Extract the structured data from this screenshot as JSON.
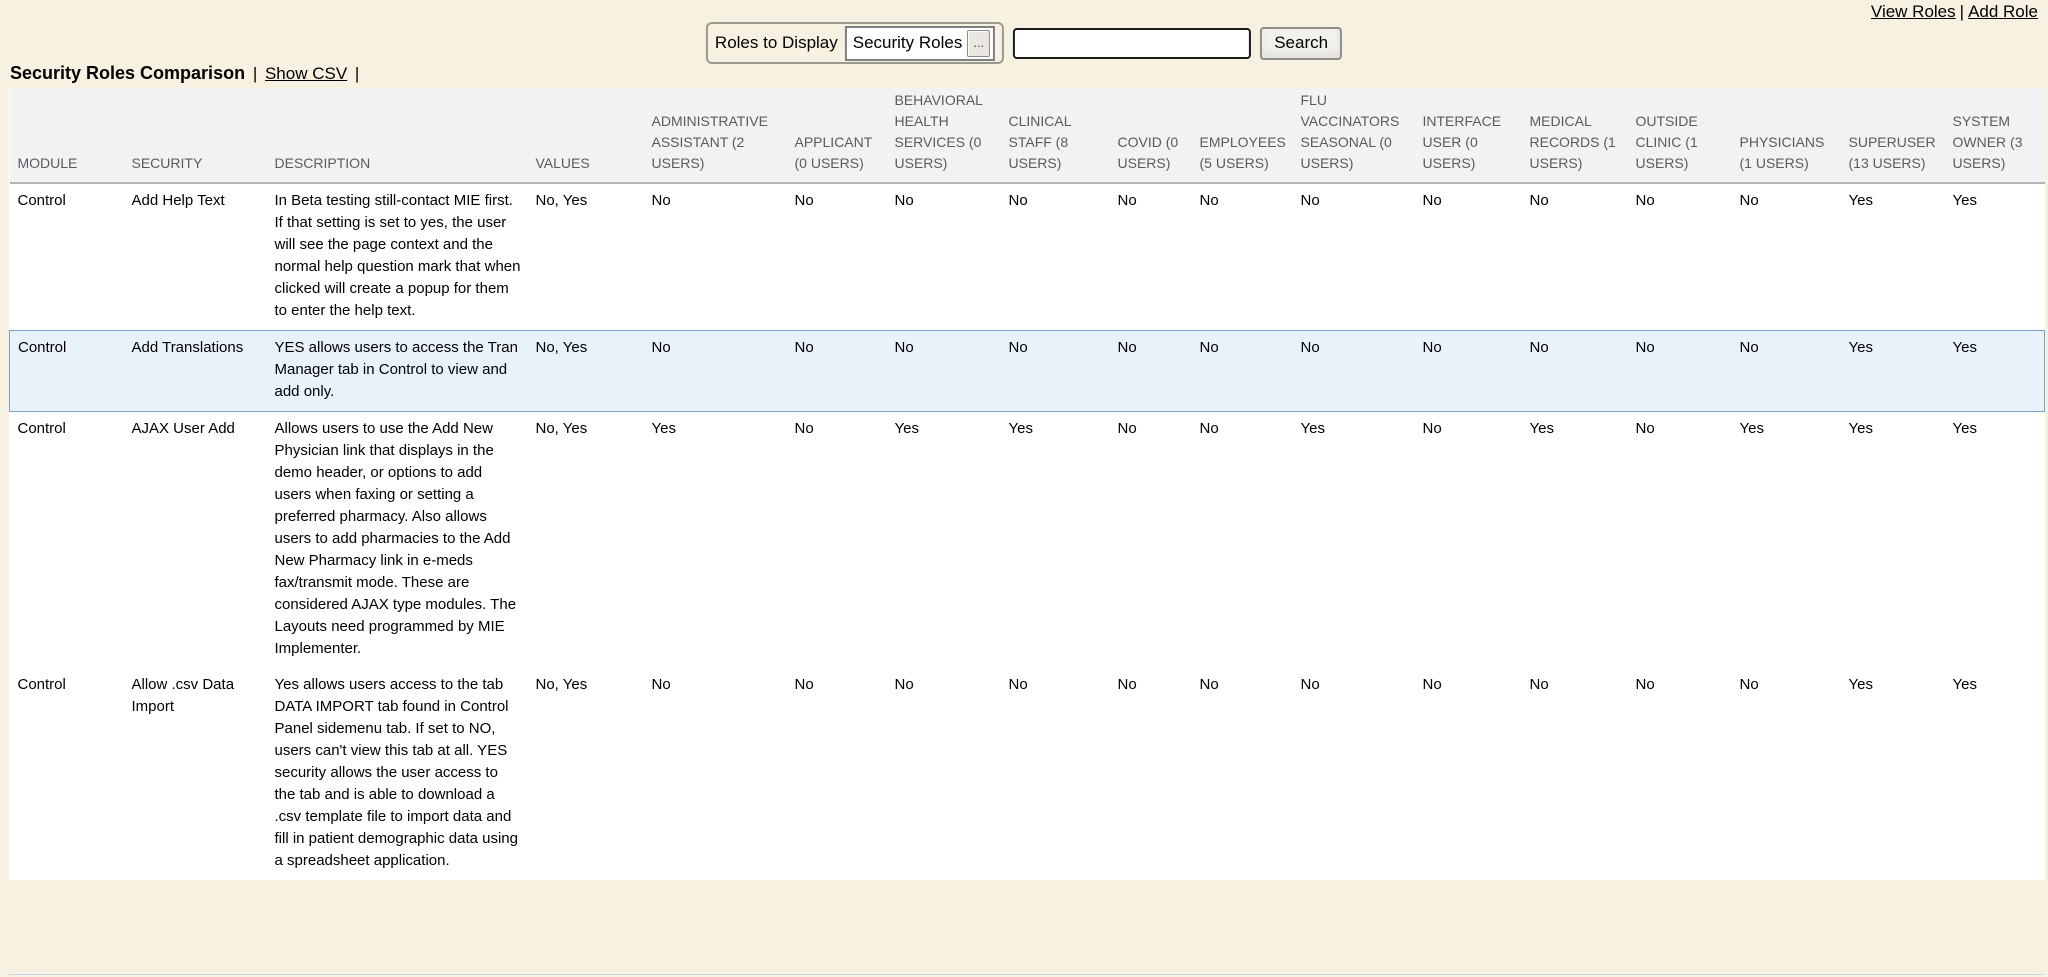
{
  "top_nav": {
    "view_roles_link": "View Roles",
    "separator": "|",
    "add_role_link": "Add Role"
  },
  "toolbar": {
    "roles_to_display_label": "Roles to Display",
    "roles_select_value": "Security Roles",
    "ellipsis_button_label": "...",
    "search_input_value": "",
    "search_button_label": "Search"
  },
  "page_header": {
    "title": "Security Roles Comparison",
    "pre_separator": "|",
    "show_csv_link": "Show CSV",
    "post_separator": "|"
  },
  "table": {
    "columns": [
      "MODULE",
      "SECURITY",
      "DESCRIPTION",
      "VALUES",
      "ADMINISTRATIVE ASSISTANT (2 USERS)",
      "APPLICANT (0 USERS)",
      "BEHAVIORAL HEALTH SERVICES (0 USERS)",
      "CLINICAL STAFF (8 USERS)",
      "COVID (0 USERS)",
      "EMPLOYEES (5 USERS)",
      "FLU VACCINATORS SEASONAL (0 USERS)",
      "INTERFACE USER (0 USERS)",
      "MEDICAL RECORDS (1 USERS)",
      "OUTSIDE CLINIC (1 USERS)",
      "PHYSICIANS (1 USERS)",
      "SUPERUSER (13 USERS)",
      "SYSTEM OWNER (3 USERS)"
    ],
    "highlighted_row_index": 1,
    "rows": [
      {
        "module": "Control",
        "security": "Add Help Text",
        "description": "In Beta testing still-contact MIE first. If that setting is set to yes, the user will see the page context and the normal help question mark that when clicked will create a popup for them to enter the help text.",
        "values": "No, Yes",
        "role_values": [
          "No",
          "No",
          "No",
          "No",
          "No",
          "No",
          "No",
          "No",
          "No",
          "No",
          "No",
          "Yes",
          "Yes"
        ]
      },
      {
        "module": "Control",
        "security": "Add Translations",
        "description": "YES allows users to access the Tran Manager tab in Control to view and add only.",
        "values": "No, Yes",
        "role_values": [
          "No",
          "No",
          "No",
          "No",
          "No",
          "No",
          "No",
          "No",
          "No",
          "No",
          "No",
          "Yes",
          "Yes"
        ]
      },
      {
        "module": "Control",
        "security": "AJAX User Add",
        "description": "Allows users to use the Add New Physician link that displays in the demo header, or options to add users when faxing or setting a preferred pharmacy. Also allows users to add pharmacies to the Add New Pharmacy link in e-meds fax/transmit mode. These are considered AJAX type modules. The Layouts need programmed by MIE Implementer.",
        "values": "No, Yes",
        "role_values": [
          "Yes",
          "No",
          "Yes",
          "Yes",
          "No",
          "No",
          "Yes",
          "No",
          "Yes",
          "No",
          "Yes",
          "Yes",
          "Yes"
        ]
      },
      {
        "module": "Control",
        "security": "Allow .csv Data Import",
        "description": "Yes allows users access to the tab DATA IMPORT tab found in Control Panel sidemenu tab. If set to NO, users can't view this tab at all. YES security allows the user access to the tab and is able to download a .csv template file to import data and fill in patient demographic data using a spreadsheet application.",
        "values": "No, Yes",
        "role_values": [
          "No",
          "No",
          "No",
          "No",
          "No",
          "No",
          "No",
          "No",
          "No",
          "No",
          "No",
          "Yes",
          "Yes"
        ]
      }
    ]
  },
  "colors": {
    "page_background": "#f6f1e0",
    "table_header_background": "#f2f2f4",
    "table_header_text": "#5a5b5e",
    "highlight_row_background": "#e8f2fa",
    "highlight_row_border": "#7aa3cc"
  }
}
